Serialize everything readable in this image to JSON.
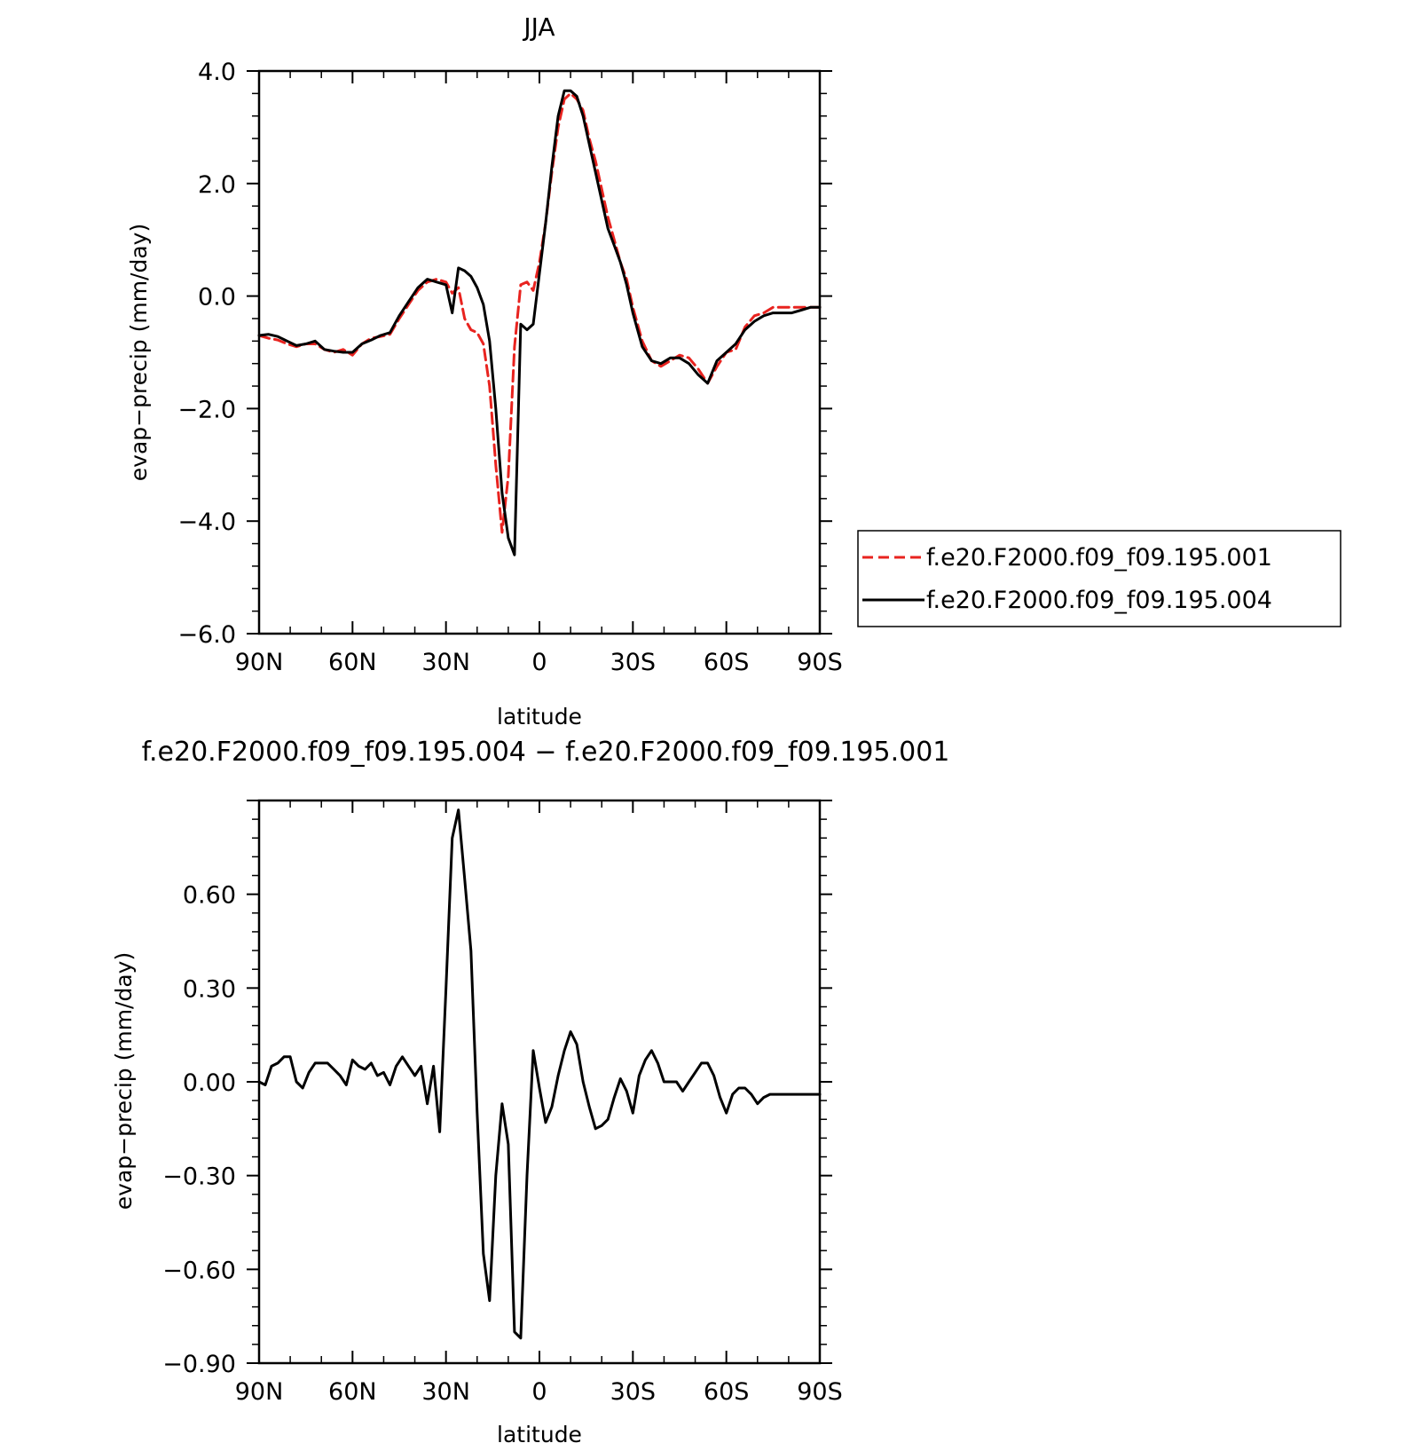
{
  "chart_data": [
    {
      "type": "line",
      "title": "JJA",
      "xlabel": "latitude",
      "ylabel": "evap−precip (mm/day)",
      "x_ticks": [
        "90N",
        "60N",
        "30N",
        "0",
        "30S",
        "60S",
        "90S"
      ],
      "y_ticks": [
        "4.0",
        "2.0",
        "0.0",
        "−2.0",
        "−4.0",
        "−6.0"
      ],
      "xlim": [
        90,
        -90
      ],
      "ylim": [
        -6,
        4
      ],
      "legend_position": "right",
      "series": [
        {
          "name": "f.e20.F2000.f09_f09.195.001",
          "color": "#e8231f",
          "dash": "dashed",
          "x": [
            90,
            87,
            84,
            81,
            78,
            75,
            72,
            69,
            66,
            63,
            60,
            57,
            54,
            51,
            48,
            45,
            42,
            39,
            36,
            33,
            30,
            28,
            26,
            24,
            22,
            20,
            18,
            16,
            14,
            12,
            10,
            8,
            6,
            4,
            2,
            0,
            -2,
            -4,
            -6,
            -8,
            -10,
            -12,
            -14,
            -16,
            -18,
            -20,
            -22,
            -24,
            -26,
            -28,
            -30,
            -33,
            -36,
            -39,
            -42,
            -45,
            -48,
            -51,
            -54,
            -57,
            -60,
            -63,
            -66,
            -69,
            -72,
            -75,
            -78,
            -81,
            -84,
            -87,
            -90
          ],
          "y": [
            -0.7,
            -0.75,
            -0.78,
            -0.85,
            -0.9,
            -0.85,
            -0.85,
            -0.95,
            -1.0,
            -0.95,
            -1.05,
            -0.85,
            -0.75,
            -0.72,
            -0.68,
            -0.4,
            -0.15,
            0.1,
            0.25,
            0.3,
            0.25,
            0.05,
            0.15,
            -0.4,
            -0.6,
            -0.65,
            -0.85,
            -1.6,
            -3.0,
            -4.2,
            -3.2,
            -0.9,
            0.2,
            0.25,
            0.1,
            0.6,
            1.3,
            2.2,
            3.0,
            3.5,
            3.6,
            3.5,
            3.3,
            2.8,
            2.4,
            1.9,
            1.4,
            1.0,
            0.6,
            0.3,
            -0.2,
            -0.8,
            -1.15,
            -1.25,
            -1.15,
            -1.05,
            -1.1,
            -1.3,
            -1.55,
            -1.25,
            -1.0,
            -0.95,
            -0.55,
            -0.35,
            -0.3,
            -0.2,
            -0.2,
            -0.2,
            -0.2,
            -0.2,
            -0.2
          ]
        },
        {
          "name": "f.e20.F2000.f09_f09.195.004",
          "color": "#000000",
          "dash": "solid",
          "x": [
            90,
            87,
            84,
            81,
            78,
            75,
            72,
            69,
            66,
            63,
            60,
            57,
            54,
            51,
            48,
            45,
            42,
            39,
            36,
            33,
            30,
            28,
            26,
            24,
            22,
            20,
            18,
            16,
            14,
            12,
            10,
            8,
            6,
            4,
            2,
            0,
            -2,
            -4,
            -6,
            -8,
            -10,
            -12,
            -14,
            -16,
            -18,
            -20,
            -22,
            -24,
            -26,
            -28,
            -30,
            -33,
            -36,
            -39,
            -42,
            -45,
            -48,
            -51,
            -54,
            -57,
            -60,
            -63,
            -66,
            -69,
            -72,
            -75,
            -78,
            -81,
            -84,
            -87,
            -90
          ],
          "y": [
            -0.7,
            -0.68,
            -0.72,
            -0.8,
            -0.88,
            -0.85,
            -0.8,
            -0.95,
            -0.98,
            -1.0,
            -1.0,
            -0.85,
            -0.78,
            -0.7,
            -0.65,
            -0.35,
            -0.1,
            0.15,
            0.3,
            0.25,
            0.2,
            -0.3,
            0.5,
            0.45,
            0.35,
            0.15,
            -0.15,
            -0.8,
            -2.0,
            -3.5,
            -4.3,
            -4.6,
            -0.5,
            -0.6,
            -0.5,
            0.4,
            1.3,
            2.3,
            3.2,
            3.65,
            3.65,
            3.55,
            3.2,
            2.7,
            2.2,
            1.7,
            1.2,
            0.9,
            0.6,
            0.2,
            -0.3,
            -0.9,
            -1.15,
            -1.2,
            -1.1,
            -1.1,
            -1.2,
            -1.4,
            -1.55,
            -1.15,
            -1.0,
            -0.85,
            -0.6,
            -0.45,
            -0.35,
            -0.3,
            -0.3,
            -0.3,
            -0.25,
            -0.2,
            -0.2
          ]
        }
      ]
    },
    {
      "type": "line",
      "title": "f.e20.F2000.f09_f09.195.004 − f.e20.F2000.f09_f09.195.001",
      "xlabel": "latitude",
      "ylabel": "evap−precip (mm/day)",
      "x_ticks": [
        "90N",
        "60N",
        "30N",
        "0",
        "30S",
        "60S",
        "90S"
      ],
      "y_ticks": [
        "0.60",
        "0.30",
        "0.00",
        "−0.30",
        "−0.60",
        "−0.90"
      ],
      "xlim": [
        90,
        -90
      ],
      "ylim": [
        -0.9,
        0.9
      ],
      "series": [
        {
          "color": "#000000",
          "dash": "solid",
          "x": [
            90,
            88,
            86,
            84,
            82,
            80,
            78,
            76,
            74,
            72,
            70,
            68,
            66,
            64,
            62,
            60,
            58,
            56,
            54,
            52,
            50,
            48,
            46,
            44,
            42,
            40,
            38,
            36,
            34,
            32,
            30,
            28,
            26,
            24,
            22,
            20,
            18,
            16,
            14,
            12,
            10,
            8,
            6,
            4,
            2,
            0,
            -2,
            -4,
            -6,
            -8,
            -10,
            -12,
            -14,
            -16,
            -18,
            -20,
            -22,
            -24,
            -26,
            -28,
            -30,
            -32,
            -34,
            -36,
            -38,
            -40,
            -42,
            -44,
            -46,
            -48,
            -50,
            -52,
            -54,
            -56,
            -58,
            -60,
            -62,
            -64,
            -66,
            -68,
            -70,
            -72,
            -74,
            -76,
            -78,
            -80,
            -82,
            -84,
            -86,
            -88,
            -90
          ],
          "y": [
            0.0,
            -0.01,
            0.05,
            0.06,
            0.08,
            0.08,
            0.0,
            -0.02,
            0.03,
            0.06,
            0.06,
            0.06,
            0.04,
            0.02,
            -0.01,
            0.07,
            0.05,
            0.04,
            0.06,
            0.02,
            0.03,
            -0.01,
            0.05,
            0.08,
            0.05,
            0.02,
            0.05,
            -0.07,
            0.05,
            -0.16,
            0.3,
            0.78,
            0.87,
            0.65,
            0.42,
            -0.1,
            -0.55,
            -0.7,
            -0.3,
            -0.07,
            -0.2,
            -0.8,
            -0.82,
            -0.3,
            0.1,
            -0.02,
            -0.13,
            -0.08,
            0.02,
            0.1,
            0.16,
            0.12,
            0.0,
            -0.08,
            -0.15,
            -0.14,
            -0.12,
            -0.05,
            0.01,
            -0.03,
            -0.1,
            0.02,
            0.07,
            0.1,
            0.06,
            0.0,
            0.0,
            0.0,
            -0.03,
            0.0,
            0.03,
            0.06,
            0.06,
            0.02,
            -0.05,
            -0.1,
            -0.04,
            -0.02,
            -0.02,
            -0.04,
            -0.07,
            -0.05,
            -0.04,
            -0.04,
            -0.04,
            -0.04,
            -0.04,
            -0.04,
            -0.04,
            -0.04,
            -0.04
          ]
        }
      ]
    }
  ]
}
